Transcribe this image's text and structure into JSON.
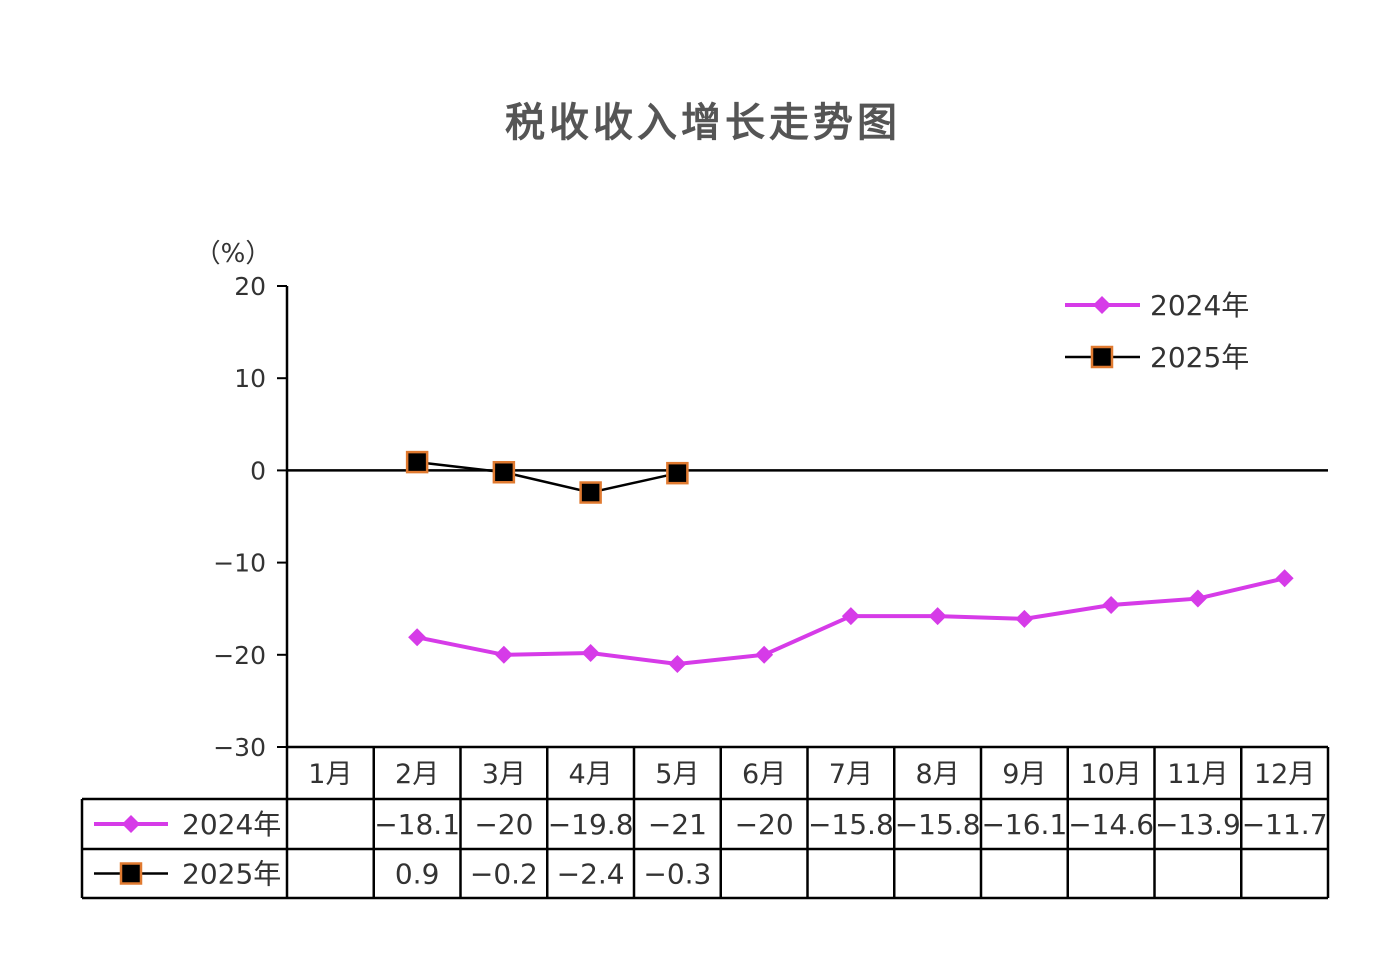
{
  "chart_data": {
    "type": "line",
    "title": "税收收入增长走势图",
    "ylabel": "（%）",
    "ylim": [
      -30,
      20
    ],
    "yticks": [
      "20",
      "10",
      "0",
      "−10",
      "−20",
      "−30"
    ],
    "categories": [
      "1月",
      "2月",
      "3月",
      "4月",
      "5月",
      "6月",
      "7月",
      "8月",
      "9月",
      "10月",
      "11月",
      "12月"
    ],
    "series": [
      {
        "name": "2024年",
        "color": "#d63be8",
        "marker": "diamond",
        "values": [
          null,
          -18.1,
          -20,
          -19.8,
          -21,
          -20,
          -15.8,
          -15.8,
          -16.1,
          -14.6,
          -13.9,
          -11.7
        ],
        "labels": [
          "",
          "−18.1",
          "−20",
          "−19.8",
          "−21",
          "−20",
          "−15.8",
          "−15.8",
          "−16.1",
          "−14.6",
          "−13.9",
          "−11.7"
        ]
      },
      {
        "name": "2025年",
        "color": "#000000",
        "marker_fill": "#000000",
        "marker_stroke": "#e07a30",
        "marker": "square",
        "values": [
          null,
          0.9,
          -0.2,
          -2.4,
          -0.3,
          null,
          null,
          null,
          null,
          null,
          null,
          null
        ],
        "labels": [
          "",
          "0.9",
          "−0.2",
          "−2.4",
          "−0.3",
          "",
          "",
          "",
          "",
          "",
          "",
          ""
        ]
      }
    ],
    "legend": "top-right",
    "grid": false
  }
}
